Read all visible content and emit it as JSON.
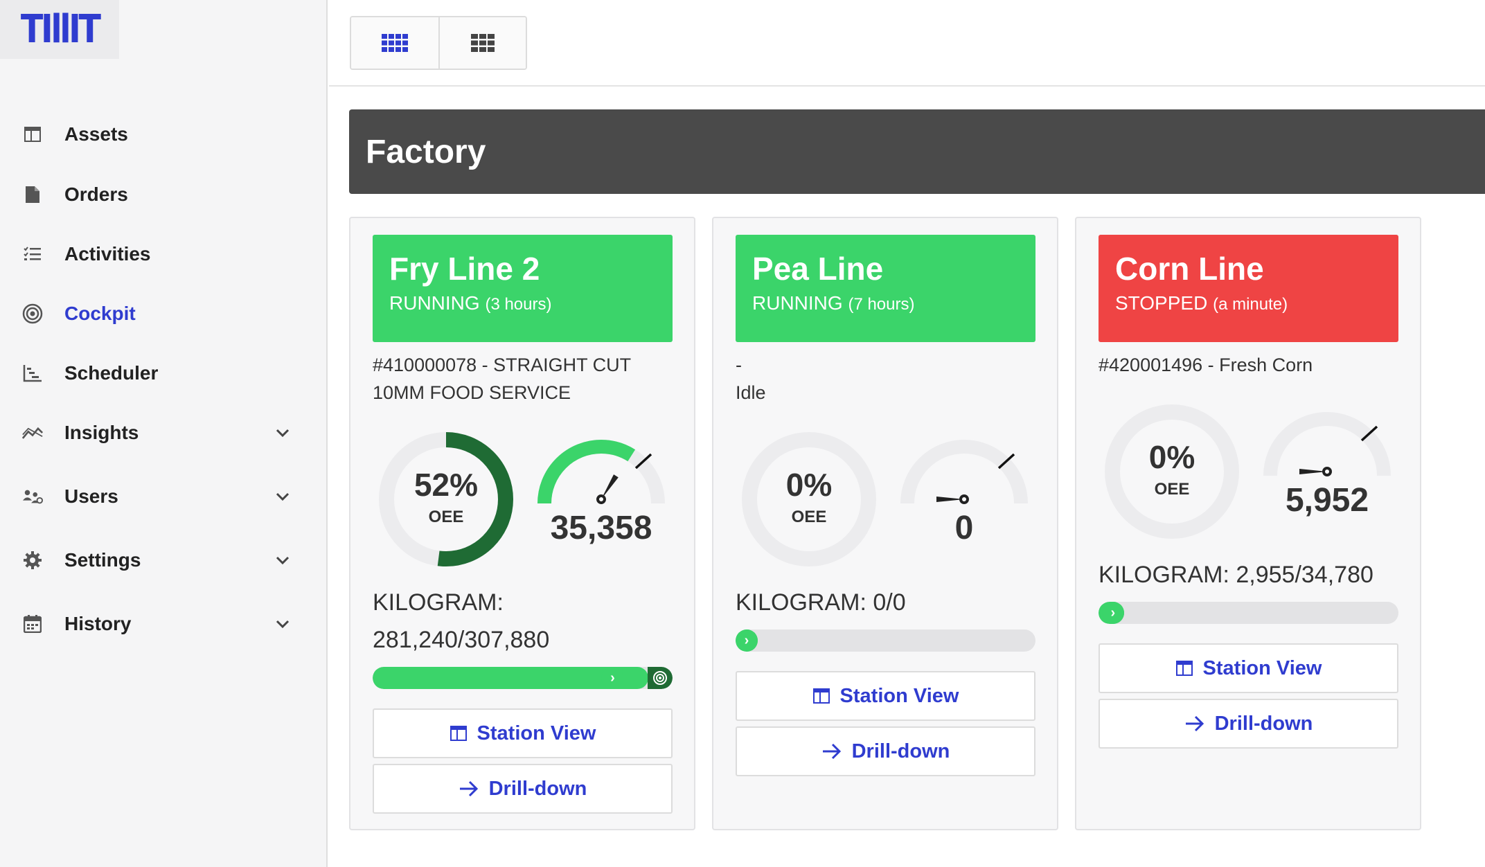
{
  "app": {
    "logo": "TIllIT"
  },
  "sidebar": {
    "items": [
      {
        "label": "Assets",
        "icon": "table-icon",
        "active": false,
        "expandable": false
      },
      {
        "label": "Orders",
        "icon": "document-icon",
        "active": false,
        "expandable": false
      },
      {
        "label": "Activities",
        "icon": "checklist-icon",
        "active": false,
        "expandable": false
      },
      {
        "label": "Cockpit",
        "icon": "target-icon",
        "active": true,
        "expandable": false
      },
      {
        "label": "Scheduler",
        "icon": "gantt-icon",
        "active": false,
        "expandable": false
      },
      {
        "label": "Insights",
        "icon": "trend-icon",
        "active": false,
        "expandable": true
      },
      {
        "label": "Users",
        "icon": "users-icon",
        "active": false,
        "expandable": true
      },
      {
        "label": "Settings",
        "icon": "gear-icon",
        "active": false,
        "expandable": true
      },
      {
        "label": "History",
        "icon": "calendar-icon",
        "active": false,
        "expandable": true
      }
    ]
  },
  "toolbar": {
    "view_dense": "grid-small-icon",
    "view_large": "grid-large-icon"
  },
  "factory": {
    "title": "Factory"
  },
  "colors": {
    "running": "#3bd46a",
    "stopped": "#ef4444",
    "accent": "#2f3ccf",
    "oee_ring": "#1f6b34",
    "header": "#4a4a4a"
  },
  "lines": [
    {
      "name": "Fry Line 2",
      "status": "RUNNING",
      "duration": "(3 hours)",
      "state": "running",
      "order_line1": "#410000078 - STRAIGHT CUT",
      "order_line2": "10MM FOOD SERVICE",
      "oee_value": "52%",
      "oee_fraction": 0.52,
      "oee_label": "OEE",
      "speed_fraction": 0.68,
      "count": "35,358",
      "kg_line1": "KILOGRAM:",
      "kg_line2": "281,240/307,880",
      "progress_fraction": 0.913,
      "station_label": "Station View",
      "drill_label": "Drill-down"
    },
    {
      "name": "Pea Line",
      "status": "RUNNING",
      "duration": "(7 hours)",
      "state": "running",
      "order_line1": "-",
      "order_line2": "Idle",
      "oee_value": "0%",
      "oee_fraction": 0,
      "oee_label": "OEE",
      "speed_fraction": 0,
      "count": "0",
      "kg_line1": "KILOGRAM: 0/0",
      "kg_line2": "",
      "progress_fraction": 0,
      "station_label": "Station View",
      "drill_label": "Drill-down"
    },
    {
      "name": "Corn Line",
      "status": "STOPPED",
      "duration": "(a minute)",
      "state": "stopped",
      "order_line1": "#420001496 - Fresh Corn",
      "order_line2": "",
      "oee_value": "0%",
      "oee_fraction": 0,
      "oee_label": "OEE",
      "speed_fraction": 0,
      "count": "5,952",
      "kg_line1": "KILOGRAM: 2,955/34,780",
      "kg_line2": "",
      "progress_fraction": 0.085,
      "station_label": "Station View",
      "drill_label": "Drill-down"
    }
  ]
}
